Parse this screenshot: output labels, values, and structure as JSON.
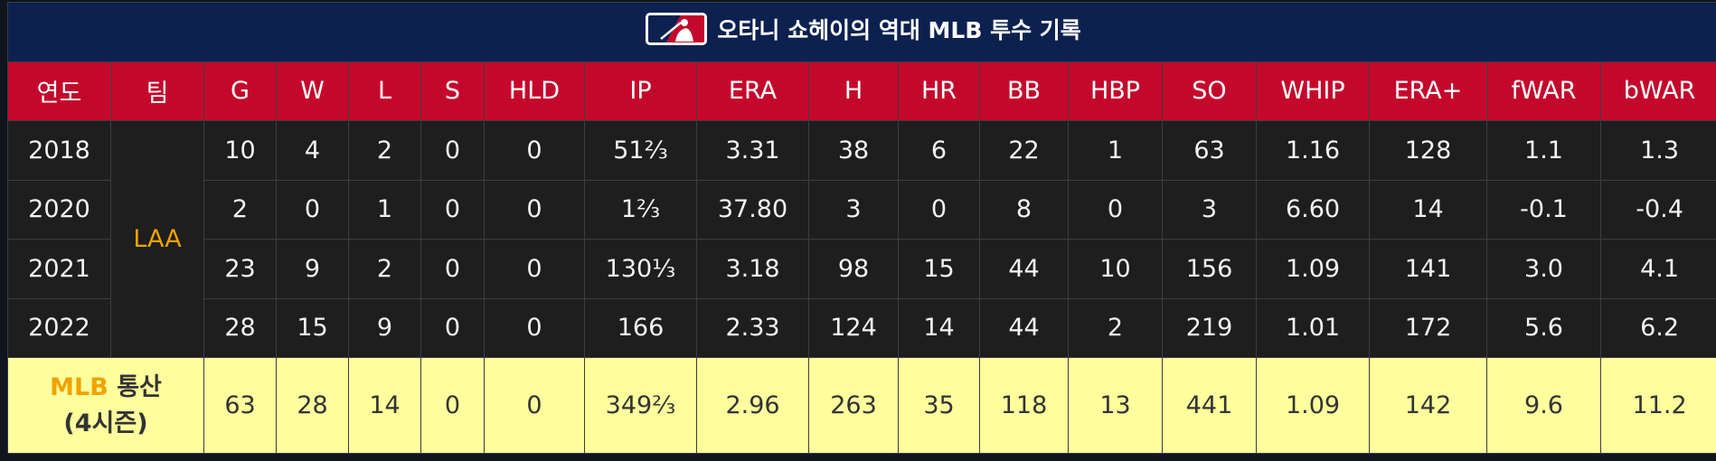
{
  "title": "오타니 쇼헤이의 역대 MLB 투수 기록",
  "logo_icon": "mlb-logo-icon",
  "colors": {
    "title_bg": "#0c2150",
    "header_bg": "#c4082c",
    "row_bg": "#1e1e1e",
    "total_bg": "#ffff9e",
    "team_accent": "#f1a200"
  },
  "columns": [
    "연도",
    "팀",
    "G",
    "W",
    "L",
    "S",
    "HLD",
    "IP",
    "ERA",
    "H",
    "HR",
    "BB",
    "HBP",
    "SO",
    "WHIP",
    "ERA+",
    "fWAR",
    "bWAR"
  ],
  "team": "LAA",
  "rows": [
    {
      "year": "2018",
      "stats": [
        "10",
        "4",
        "2",
        "0",
        "0",
        "51⅔",
        "3.31",
        "38",
        "6",
        "22",
        "1",
        "63",
        "1.16",
        "128",
        "1.1",
        "1.3"
      ]
    },
    {
      "year": "2020",
      "stats": [
        "2",
        "0",
        "1",
        "0",
        "0",
        "1⅔",
        "37.80",
        "3",
        "0",
        "8",
        "0",
        "3",
        "6.60",
        "14",
        "-0.1",
        "-0.4"
      ]
    },
    {
      "year": "2021",
      "stats": [
        "23",
        "9",
        "2",
        "0",
        "0",
        "130⅓",
        "3.18",
        "98",
        "15",
        "44",
        "10",
        "156",
        "1.09",
        "141",
        "3.0",
        "4.1"
      ]
    },
    {
      "year": "2022",
      "stats": [
        "28",
        "15",
        "9",
        "0",
        "0",
        "166",
        "2.33",
        "124",
        "14",
        "44",
        "2",
        "219",
        "1.01",
        "172",
        "5.6",
        "6.2"
      ]
    }
  ],
  "total": {
    "label_league": "MLB",
    "label_word": "통산",
    "label_seasons": "(4시즌)",
    "stats": [
      "63",
      "28",
      "14",
      "0",
      "0",
      "349⅔",
      "2.96",
      "263",
      "35",
      "118",
      "13",
      "441",
      "1.09",
      "142",
      "9.6",
      "11.2"
    ]
  }
}
